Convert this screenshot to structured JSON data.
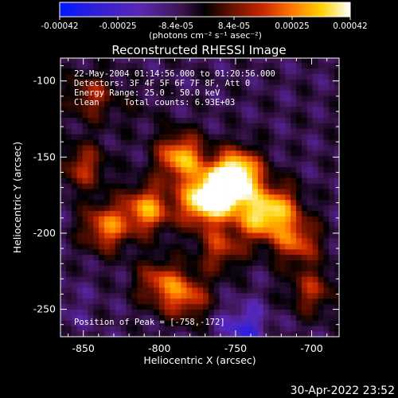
{
  "colorbar": {
    "tick_labels": [
      "-0.00042",
      "-0.00025",
      "-8.4e-05",
      "8.4e-05",
      "0.00025",
      "0.00042"
    ],
    "unit_label": "(photons cm⁻² s⁻¹ asec⁻²)",
    "range": [
      -0.00042,
      0.00042
    ]
  },
  "plot": {
    "title": "Reconstructed RHESSI Image",
    "info_lines": [
      "22-May-2004 01:14:56.000 to 01:20:56.000",
      "Detectors: 3F 4F 5F 6F 7F 8F, Att 0",
      "Energy Range: 25.0 - 50.0 keV",
      "Clean     Total counts: 6.93E+03"
    ],
    "peak_text": "Position of Peak = [-758,-172]"
  },
  "footer": {
    "timestamp": "30-Apr-2022 23:52"
  },
  "colors": {
    "background": "#000000",
    "text": "#ffffff",
    "colormap": [
      "#0018ff",
      "#3020d8",
      "#5a28b0",
      "#3c1450",
      "#000000",
      "#5a0f00",
      "#c82800",
      "#ff7800",
      "#ffd200",
      "#ffffff"
    ]
  },
  "chart_data": {
    "type": "heatmap",
    "title": "Reconstructed RHESSI Image",
    "xlabel": "Heliocentric X (arcsec)",
    "ylabel": "Heliocentric Y (arcsec)",
    "xlim": [
      -865,
      -682
    ],
    "ylim": [
      -268,
      -85
    ],
    "x_ticks": [
      -850,
      -800,
      -750,
      -700
    ],
    "y_ticks": [
      -100,
      -150,
      -200,
      -250
    ],
    "peak": {
      "x": -758,
      "y": -172
    },
    "bright_regions": [
      {
        "x": -808,
        "y": -184,
        "value": 0.00026
      },
      {
        "x": -835,
        "y": -196,
        "value": 0.00022
      },
      {
        "x": -786,
        "y": -150,
        "value": 0.0003
      },
      {
        "x": -758,
        "y": -172,
        "value": 0.00042
      },
      {
        "x": -748,
        "y": -160,
        "value": 0.00035
      },
      {
        "x": -773,
        "y": -180,
        "value": 0.00028
      },
      {
        "x": -735,
        "y": -190,
        "value": 0.00022
      },
      {
        "x": -710,
        "y": -205,
        "value": 0.00018
      },
      {
        "x": -722,
        "y": -182,
        "value": 0.00016
      },
      {
        "x": -800,
        "y": -232,
        "value": 0.00014
      },
      {
        "x": -782,
        "y": -242,
        "value": 0.00016
      },
      {
        "x": -760,
        "y": -210,
        "value": 0.00012
      },
      {
        "x": -700,
        "y": -238,
        "value": 0.0001
      },
      {
        "x": -850,
        "y": -156,
        "value": 0.00012
      },
      {
        "x": -845,
        "y": -110,
        "value": 0.0001
      }
    ],
    "dim_regions": [
      {
        "x": -745,
        "y": -262,
        "value": -0.0003
      },
      {
        "x": -860,
        "y": -250,
        "value": -0.00018
      },
      {
        "x": -696,
        "y": -125,
        "value": -0.00012
      },
      {
        "x": -740,
        "y": -110,
        "value": -0.00012
      },
      {
        "x": -816,
        "y": -118,
        "value": -8e-05
      }
    ]
  }
}
